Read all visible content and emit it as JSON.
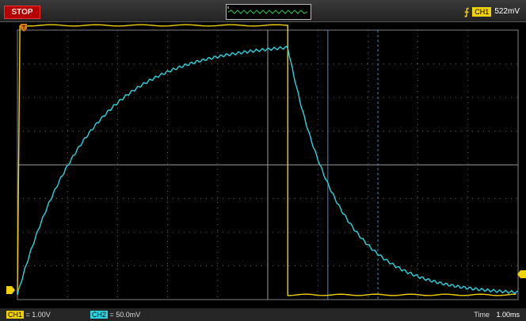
{
  "topbar": {
    "run_state": "STOP",
    "trigger": {
      "channel": "CH1",
      "level": "522mV",
      "slope_icon": "rising-edge-icon"
    }
  },
  "settings": {
    "ch1_tag": "CH1",
    "ch1_scale": "= 1.00V",
    "ch2_tag": "CH2",
    "ch2_scale": "= 50.0mV",
    "time_label": "Time",
    "time_scale": "1.00ms"
  },
  "colors": {
    "ch1": "#f2d100",
    "ch2": "#2ad4e0",
    "grid": "#808080",
    "cursor": "#3d8bd1"
  },
  "waveforms": {
    "ch1": {
      "shape": "square-pulse",
      "high_div": 8,
      "low_div": 0,
      "rise_time_div": 0,
      "fall_time_div": 5.4
    },
    "ch2": {
      "shape": "rc-charge-discharge",
      "start_div": 0,
      "charge_time_constant_div": 1.4,
      "peak_div": 7.5,
      "discharge_time_constant_div": 1.0
    }
  },
  "cursors_div": [
    6.2,
    7.2
  ]
}
